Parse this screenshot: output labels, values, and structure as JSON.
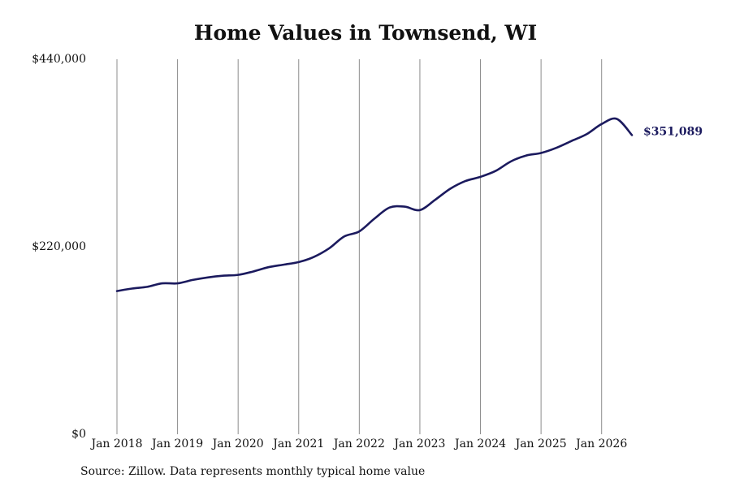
{
  "chart_data": {
    "type": "line",
    "title": "Home Values in Townsend, WI",
    "xlabel": "",
    "ylabel": "",
    "ylim": [
      0,
      440000
    ],
    "yticks": [
      0,
      220000,
      440000
    ],
    "ytick_labels": [
      "$0",
      "$220,000",
      "$440,000"
    ],
    "xlim": [
      "2018-01",
      "2026-07"
    ],
    "xticks": [
      "2018-01",
      "2019-01",
      "2020-01",
      "2021-01",
      "2022-01",
      "2023-01",
      "2024-01",
      "2025-01",
      "2026-01"
    ],
    "xtick_labels": [
      "Jan 2018",
      "Jan 2019",
      "Jan 2020",
      "Jan 2021",
      "Jan 2022",
      "Jan 2023",
      "Jan 2024",
      "Jan 2025",
      "Jan 2026"
    ],
    "grid": "vertical",
    "line_color": "#1b1a5e",
    "end_label": "$351,089",
    "series": [
      {
        "x": [
          "2018-01",
          "2018-04",
          "2018-07",
          "2018-10",
          "2019-01",
          "2019-04",
          "2019-07",
          "2019-10",
          "2020-01",
          "2020-04",
          "2020-07",
          "2020-10",
          "2021-01",
          "2021-04",
          "2021-07",
          "2021-10",
          "2022-01",
          "2022-04",
          "2022-07",
          "2022-10",
          "2023-01",
          "2023-04",
          "2023-07",
          "2023-10",
          "2024-01",
          "2024-04",
          "2024-07",
          "2024-10",
          "2025-01",
          "2025-04",
          "2025-07",
          "2025-10",
          "2026-01",
          "2026-04",
          "2026-07"
        ],
        "values": [
          168000,
          171000,
          173000,
          177000,
          177000,
          181000,
          184000,
          186000,
          187000,
          191000,
          196000,
          199000,
          202000,
          208000,
          218000,
          232000,
          238000,
          253000,
          266000,
          267000,
          263000,
          275000,
          288000,
          297000,
          302000,
          309000,
          320000,
          327000,
          330000,
          336000,
          344000,
          352000,
          364000,
          370000,
          351089
        ]
      }
    ]
  },
  "footer": {
    "source": "Source: Zillow. Data represents monthly typical home value"
  }
}
